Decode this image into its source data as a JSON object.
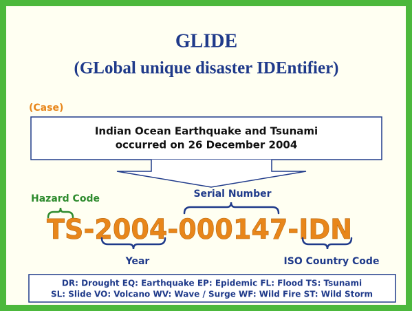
{
  "title": "GLIDE",
  "subtitle": "(GLobal unique disaster IDEntifier)",
  "case_label": "(Case)",
  "case_lines": [
    "Indian Ocean Earthquake and Tsunami",
    "occurred on 26 December 2004"
  ],
  "labels": {
    "hazard": "Hazard Code",
    "serial": "Serial Number",
    "year": "Year",
    "country": "ISO Country Code"
  },
  "code": "TS-2004-000147-IDN",
  "legend_lines": [
    "DR: Drought EQ: Earthquake EP: Epidemic FL: Flood TS: Tsunami",
    "SL: Slide VO: Volcano WV: Wave / Surge WF: Wild Fire ST: Wild Storm"
  ]
}
